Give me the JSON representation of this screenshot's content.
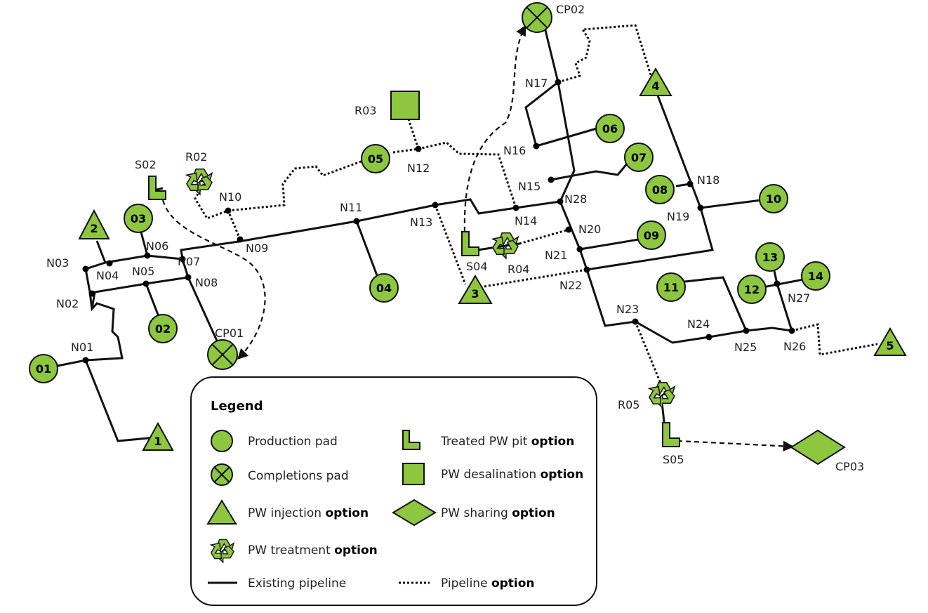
{
  "nodes": [
    "N01",
    "N02",
    "N03",
    "N04",
    "N05",
    "N06",
    "N07",
    "N08",
    "N09",
    "N10",
    "N11",
    "N12",
    "N13",
    "N14",
    "N15",
    "N16",
    "N17",
    "N18",
    "N19",
    "N20",
    "N21",
    "N22",
    "N23",
    "N24",
    "N25",
    "N26",
    "N27",
    "N28"
  ],
  "production_pads": [
    "01",
    "02",
    "03",
    "04",
    "05",
    "06",
    "07",
    "08",
    "09",
    "10",
    "11",
    "12",
    "13",
    "14"
  ],
  "completions_pads": [
    "CP01",
    "CP02"
  ],
  "sharing": [
    "CP03"
  ],
  "injection": [
    "1",
    "2",
    "3",
    "4",
    "5"
  ],
  "treatment": [
    "R02",
    "R04",
    "R05"
  ],
  "desalination": [
    "R03"
  ],
  "pits": [
    "S02",
    "S04",
    "S05"
  ],
  "legend": {
    "title": "Legend",
    "production": "Production pad",
    "completions": "Completions pad",
    "injection": "PW injection ",
    "treatment": "PW treatment ",
    "pit": "Treated PW pit ",
    "desalination": "PW desalination ",
    "sharing": "PW sharing ",
    "existing": "Existing pipeline",
    "pipeline_option": "Pipeline ",
    "option_word": "option"
  },
  "colors": {
    "fill": "#8dc63f",
    "stroke": "#111111"
  }
}
